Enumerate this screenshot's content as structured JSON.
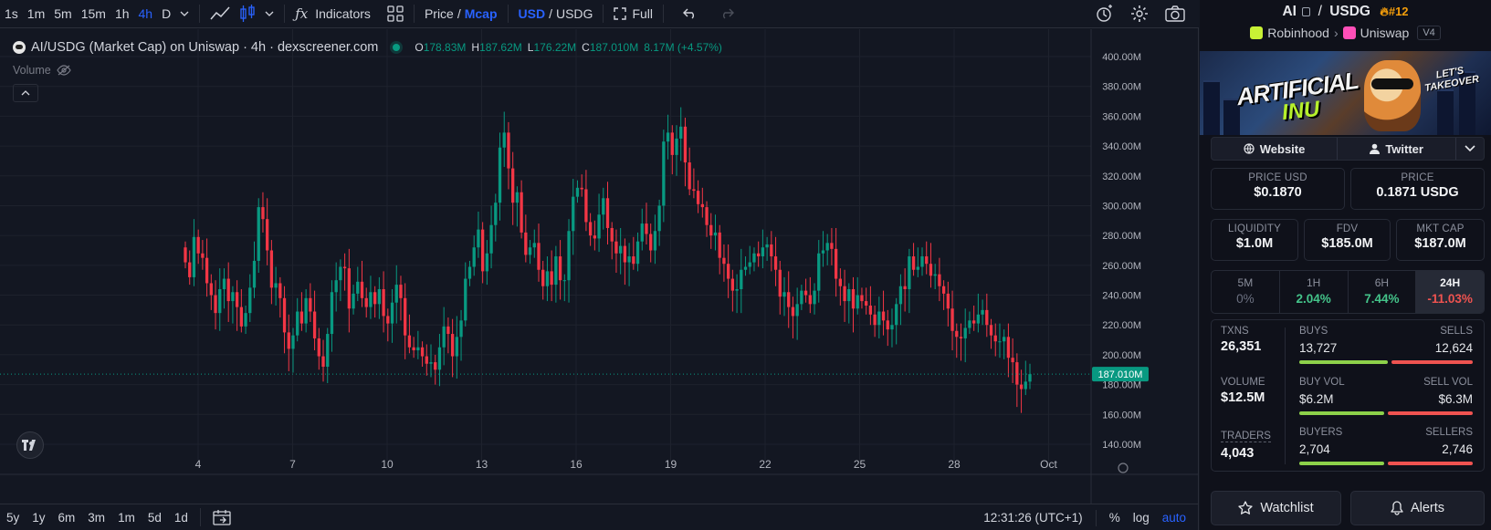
{
  "toolbar": {
    "intervals": [
      "1s",
      "1m",
      "5m",
      "15m",
      "1h",
      "4h",
      "D"
    ],
    "active_interval": "4h",
    "indicators_label": "Indicators",
    "price_label": "Price",
    "slash": "/",
    "mcap_label": "Mcap",
    "usd_label": "USD",
    "usdg_label": "USDG",
    "full_label": "Full"
  },
  "legend": {
    "title": "AI/USDG (Market Cap) on Uniswap · 4h · dexscreener.com",
    "o_key": "O",
    "o_val": "178.83M",
    "h_key": "H",
    "h_val": "187.62M",
    "l_key": "L",
    "l_val": "176.22M",
    "c_key": "C",
    "c_val": "187.010M",
    "change": "8.17M (+4.57%)",
    "volume_label": "Volume"
  },
  "chart_data": {
    "type": "candlestick",
    "y_axis_ticks": [
      "400.00M",
      "380.00M",
      "360.00M",
      "340.00M",
      "320.00M",
      "300.00M",
      "280.00M",
      "260.00M",
      "240.00M",
      "220.00M",
      "200.00M",
      "180.00M",
      "160.00M",
      "140.00M"
    ],
    "ylim": [
      140,
      400
    ],
    "y_unit": "M",
    "x_axis_ticks": [
      "4",
      "7",
      "10",
      "13",
      "16",
      "19",
      "22",
      "25",
      "28",
      "Oct"
    ],
    "current_price_label": "187.010M",
    "current_value": 187.01,
    "colors": {
      "up": "#089981",
      "down": "#f23645"
    },
    "series_close": [
      262,
      252,
      279,
      268,
      265,
      248,
      240,
      228,
      244,
      251,
      236,
      242,
      232,
      219,
      228,
      245,
      263,
      299,
      291,
      270,
      245,
      248,
      238,
      215,
      204,
      213,
      229,
      221,
      238,
      229,
      211,
      199,
      192,
      214,
      242,
      250,
      259,
      258,
      231,
      241,
      249,
      238,
      232,
      242,
      234,
      244,
      226,
      221,
      235,
      247,
      238,
      213,
      205,
      203,
      205,
      199,
      194,
      195,
      190,
      205,
      219,
      214,
      199,
      212,
      223,
      251,
      259,
      272,
      284,
      256,
      268,
      287,
      302,
      339,
      349,
      325,
      302,
      309,
      282,
      267,
      272,
      275,
      257,
      246,
      256,
      247,
      266,
      250,
      250,
      283,
      306,
      312,
      311,
      289,
      280,
      278,
      294,
      305,
      285,
      276,
      268,
      273,
      262,
      266,
      261,
      276,
      288,
      281,
      270,
      283,
      300,
      343,
      349,
      334,
      345,
      353,
      329,
      311,
      310,
      301,
      299,
      287,
      280,
      282,
      265,
      261,
      251,
      243,
      244,
      257,
      259,
      262,
      268,
      266,
      272,
      274,
      266,
      257,
      239,
      242,
      232,
      226,
      234,
      243,
      240,
      234,
      243,
      268,
      270,
      275,
      271,
      251,
      246,
      236,
      244,
      231,
      240,
      236,
      233,
      227,
      220,
      229,
      223,
      217,
      220,
      234,
      246,
      244,
      266,
      257,
      259,
      266,
      261,
      253,
      254,
      246,
      241,
      231,
      216,
      212,
      211,
      218,
      223,
      221,
      227,
      230,
      220,
      213,
      209,
      209,
      212,
      198,
      195,
      180,
      177,
      182,
      187.01
    ]
  },
  "bottom": {
    "ranges": [
      "5y",
      "1y",
      "6m",
      "3m",
      "1m",
      "5d",
      "1d"
    ],
    "time": "12:31:26 (UTC+1)",
    "percent": "%",
    "log": "log",
    "auto": "auto"
  },
  "sidebar": {
    "base": "AI",
    "quote": "USDG",
    "slash": "/",
    "rank": "#12",
    "chain": "Robinhood",
    "dex": "Uniswap",
    "version": "V4",
    "chevron": "›",
    "banner_text_1": "ARTIFICIAL",
    "banner_text_2": "INU",
    "banner_text_3": "LET'S TAKEOVER",
    "website_label": "Website",
    "twitter_label": "Twitter",
    "price_usd_label": "PRICE USD",
    "price_usd": "$0.1870",
    "price_label": "PRICE",
    "price_native": "0.1871 USDG",
    "liquidity_label": "LIQUIDITY",
    "liquidity": "$1.0M",
    "fdv_label": "FDV",
    "fdv": "$185.0M",
    "mktcap_label": "MKT CAP",
    "mktcap": "$187.0M",
    "timeframes": [
      {
        "label": "5M",
        "value": "0%"
      },
      {
        "label": "1H",
        "value": "2.04%"
      },
      {
        "label": "6H",
        "value": "7.44%"
      },
      {
        "label": "24H",
        "value": "-11.03%"
      }
    ],
    "txns_label": "TXNS",
    "txns": "26,351",
    "buys_label": "BUYS",
    "buys": "13,727",
    "sells_label": "SELLS",
    "sells": "12,624",
    "volume_label": "VOLUME",
    "volume": "$12.5M",
    "buy_vol_label": "BUY VOL",
    "buy_vol": "$6.2M",
    "sell_vol_label": "SELL VOL",
    "sell_vol": "$6.3M",
    "traders_label": "TRADERS",
    "traders": "4,043",
    "buyers_label": "BUYERS",
    "buyers": "2,704",
    "sellers_label": "SELLERS",
    "sellers": "2,746",
    "buy_ratio_txns": 0.52,
    "buy_ratio_vol": 0.5,
    "buy_ratio_traders": 0.5,
    "watchlist_label": "Watchlist",
    "alerts_label": "Alerts"
  },
  "colors": {
    "up": "#089981",
    "down": "#f23645",
    "accent": "#2962ff",
    "rank": "#f59e0b"
  }
}
